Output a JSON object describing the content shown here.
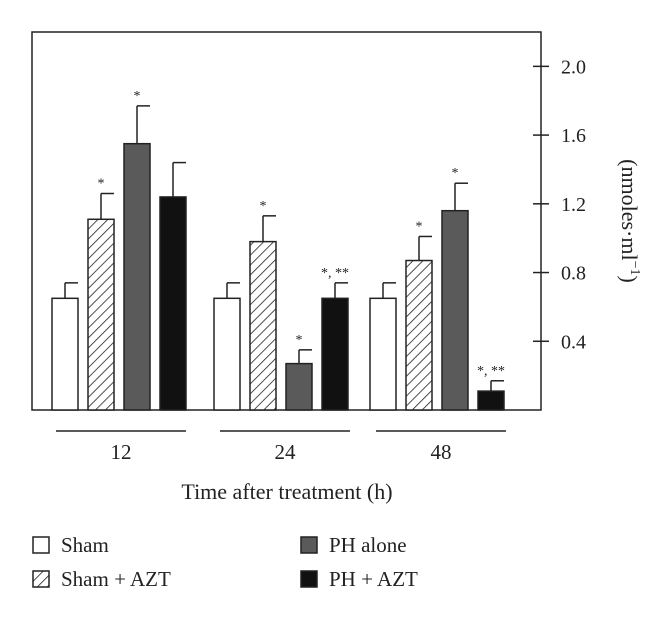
{
  "chart_data": {
    "type": "bar",
    "xlabel": "Time after treatment (h)",
    "ylabel": "(nmoles·ml",
    "ylabel_sup": "−1",
    "ylabel_close": ")",
    "ylim": [
      0,
      2.2
    ],
    "yticks": [
      "0.4",
      "0.8",
      "1.2",
      "1.6",
      "2.0"
    ],
    "categories": [
      "12",
      "24",
      "48"
    ],
    "series": [
      {
        "name": "Sham",
        "color": "#ffffff",
        "pattern": "none",
        "values": [
          0.65,
          0.65,
          0.65
        ],
        "errors": [
          0.09,
          0.09,
          0.09
        ],
        "sig": [
          "",
          "",
          ""
        ]
      },
      {
        "name": "Sham + AZT",
        "color": "#ffffff",
        "pattern": "hatch",
        "values": [
          1.11,
          0.98,
          0.87
        ],
        "errors": [
          0.15,
          0.15,
          0.14
        ],
        "sig": [
          "*",
          "*",
          "*"
        ]
      },
      {
        "name": "PH alone",
        "color": "#5a5a5a",
        "pattern": "none",
        "values": [
          1.55,
          0.27,
          1.16
        ],
        "errors": [
          0.22,
          0.08,
          0.16
        ],
        "sig": [
          "*",
          "*",
          "*"
        ]
      },
      {
        "name": "PH + AZT",
        "color": "#111111",
        "pattern": "none",
        "values": [
          1.24,
          0.65,
          0.11
        ],
        "errors": [
          0.2,
          0.09,
          0.06
        ],
        "sig": [
          "",
          "*, **",
          "*, **"
        ]
      }
    ],
    "legend_placement": "bottom"
  }
}
